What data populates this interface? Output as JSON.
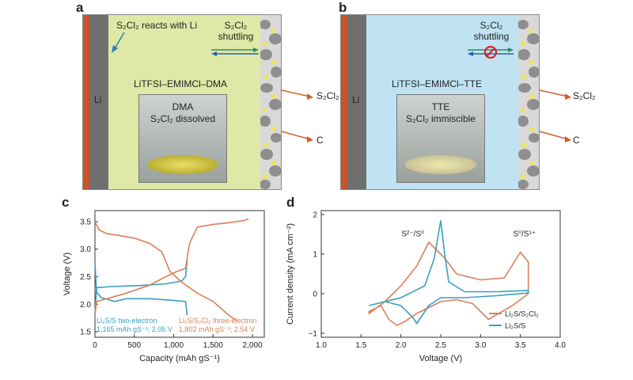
{
  "panel_a": {
    "letter": "a",
    "bg_color": "#dfe8a6",
    "reacts_label": "S₂Cl₂ reacts with Li",
    "shuttling_label": "S₂Cl₂ shuttling",
    "li_label": "Li",
    "electrolyte": "LiTFSI–EMIMCl–DMA",
    "photo_line1": "DMA",
    "photo_line2": "S₂Cl₂ dissolved",
    "out_s2cl2": "S₂Cl₂",
    "out_c": "C"
  },
  "panel_b": {
    "letter": "b",
    "bg_color": "#bfe3f2",
    "shuttling_label": "S₂Cl₂ shuttling",
    "li_label": "Li",
    "electrolyte": "LiTFSI–EMIMCl–TTE",
    "photo_line1": "TTE",
    "photo_line2": "S₂Cl₂ immiscible",
    "out_s2cl2": "S₂Cl₂",
    "out_c": "C"
  },
  "chart_data": [
    {
      "panel": "c",
      "type": "line",
      "xlabel": "Capacity (mAh gS⁻¹)",
      "ylabel": "Voltage (V)",
      "xlim": [
        0,
        2150
      ],
      "ylim": [
        1.4,
        3.7
      ],
      "xticks": [
        0,
        500,
        1000,
        1500,
        2000
      ],
      "xtick_labels": [
        "0",
        "500",
        "1,000",
        "1,500",
        "2,000"
      ],
      "yticks": [
        1.5,
        2.0,
        2.5,
        3.0,
        3.5
      ],
      "ytick_labels": [
        "1.5",
        "2.0",
        "2.5",
        "3.0",
        "3.5"
      ],
      "series": [
        {
          "name": "Li₂S/S two-electron",
          "legend_line2": "1,165 mAh gS⁻¹; 2.05 V",
          "color": "#3a9fc1",
          "curves": [
            [
              [
                0,
                2.75
              ],
              [
                20,
                2.22
              ],
              [
                80,
                2.12
              ],
              [
                250,
                2.05
              ],
              [
                400,
                2.1
              ],
              [
                700,
                2.1
              ],
              [
                1000,
                2.07
              ],
              [
                1150,
                2.05
              ],
              [
                1170,
                1.8
              ]
            ],
            [
              [
                0,
                1.8
              ],
              [
                20,
                2.3
              ],
              [
                200,
                2.32
              ],
              [
                600,
                2.34
              ],
              [
                900,
                2.37
              ],
              [
                1100,
                2.42
              ],
              [
                1150,
                2.5
              ],
              [
                1170,
                2.8
              ]
            ]
          ]
        },
        {
          "name": "Li₂S/S₂Cl₂ three-electron",
          "legend_line2": "1,802 mAh gS⁻¹; 2.54 V",
          "color": "#d9805a",
          "curves": [
            [
              [
                0,
                3.5
              ],
              [
                50,
                3.35
              ],
              [
                150,
                3.28
              ],
              [
                300,
                3.25
              ],
              [
                500,
                3.2
              ],
              [
                700,
                3.1
              ],
              [
                850,
                2.95
              ],
              [
                950,
                2.6
              ],
              [
                1100,
                2.4
              ],
              [
                1300,
                2.2
              ],
              [
                1500,
                2.05
              ],
              [
                1700,
                1.8
              ],
              [
                1800,
                1.7
              ]
            ],
            [
              [
                0,
                1.8
              ],
              [
                20,
                2.05
              ],
              [
                150,
                2.1
              ],
              [
                400,
                2.2
              ],
              [
                700,
                2.35
              ],
              [
                900,
                2.5
              ],
              [
                1050,
                2.6
              ],
              [
                1150,
                2.65
              ],
              [
                1200,
                3.1
              ],
              [
                1300,
                3.4
              ],
              [
                1500,
                3.45
              ],
              [
                1700,
                3.48
              ],
              [
                1900,
                3.52
              ],
              [
                1950,
                3.55
              ]
            ]
          ]
        }
      ]
    },
    {
      "panel": "d",
      "type": "line",
      "xlabel": "Voltage (V)",
      "ylabel": "Current density (mA cm⁻²)",
      "xlim": [
        1.0,
        4.0
      ],
      "ylim": [
        -1.1,
        2.1
      ],
      "xticks": [
        1.0,
        1.5,
        2.0,
        2.5,
        3.0,
        3.5,
        4.0
      ],
      "xtick_labels": [
        "1.0",
        "1.5",
        "2.0",
        "2.5",
        "3.0",
        "3.5",
        "4.0"
      ],
      "yticks": [
        -1,
        0,
        1,
        2
      ],
      "ytick_labels": [
        "−1",
        "0",
        "1",
        "2"
      ],
      "annotations": [
        "S²⁻/S⁰",
        "S⁰/S¹⁺"
      ],
      "series": [
        {
          "name": "Li₂S/S₂Cl₂",
          "color": "#d9805a",
          "points": [
            [
              1.6,
              -0.5
            ],
            [
              1.8,
              -0.2
            ],
            [
              2.0,
              0.2
            ],
            [
              2.2,
              0.7
            ],
            [
              2.35,
              1.3
            ],
            [
              2.45,
              1.1
            ],
            [
              2.55,
              0.9
            ],
            [
              2.7,
              0.5
            ],
            [
              3.0,
              0.35
            ],
            [
              3.3,
              0.4
            ],
            [
              3.5,
              1.05
            ],
            [
              3.6,
              0.8
            ],
            [
              3.6,
              0.0
            ],
            [
              3.4,
              -0.3
            ],
            [
              3.1,
              -0.65
            ],
            [
              2.9,
              -0.25
            ],
            [
              2.7,
              -0.15
            ],
            [
              2.5,
              -0.2
            ],
            [
              2.2,
              -0.5
            ],
            [
              2.05,
              -0.7
            ],
            [
              1.95,
              -0.8
            ],
            [
              1.85,
              -0.65
            ],
            [
              1.75,
              -0.3
            ],
            [
              1.6,
              -0.45
            ]
          ]
        },
        {
          "name": "Li₂S/S",
          "color": "#3a9fc1",
          "points": [
            [
              1.6,
              -0.3
            ],
            [
              2.0,
              -0.1
            ],
            [
              2.3,
              0.2
            ],
            [
              2.42,
              0.9
            ],
            [
              2.5,
              1.85
            ],
            [
              2.55,
              1.0
            ],
            [
              2.6,
              0.3
            ],
            [
              2.8,
              0.05
            ],
            [
              3.2,
              0.05
            ],
            [
              3.6,
              0.08
            ],
            [
              3.6,
              0.02
            ],
            [
              3.2,
              -0.05
            ],
            [
              2.8,
              -0.1
            ],
            [
              2.5,
              -0.1
            ],
            [
              2.35,
              -0.3
            ],
            [
              2.2,
              -0.75
            ],
            [
              2.15,
              -0.6
            ],
            [
              2.0,
              -0.3
            ],
            [
              1.8,
              -0.2
            ],
            [
              1.6,
              -0.3
            ]
          ]
        }
      ]
    }
  ]
}
